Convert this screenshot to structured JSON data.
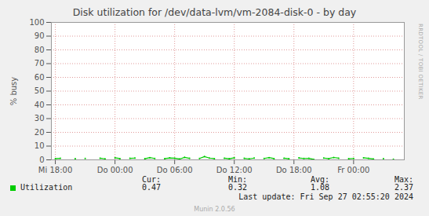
{
  "chart_data": {
    "type": "line",
    "title": "Disk utilization for /dev/data-lvm/vm-2084-disk-0 - by day",
    "ylabel": "% busy",
    "side_text": "RRDTOOL / TOBI OETIKER",
    "x": [
      0,
      0.5,
      1,
      1.5,
      2,
      2.5,
      3,
      3.5,
      4,
      4.5,
      5,
      5.5,
      6,
      6.5,
      7,
      7.5,
      8,
      8.5,
      9,
      9.5,
      10,
      10.5,
      11,
      11.5,
      12,
      12.5,
      13,
      13.5,
      14,
      14.5,
      15,
      15.5,
      16,
      16.5,
      17,
      17.5,
      18,
      18.5,
      19,
      19.5,
      20,
      20.5,
      21,
      21.5,
      22,
      22.5,
      23,
      23.5,
      24,
      24.5,
      25,
      25.5,
      26,
      26.5,
      27,
      27.5,
      28,
      28.5,
      29,
      29.5,
      30,
      30.5,
      31,
      31.5,
      32,
      32.5,
      33,
      33.5,
      34
    ],
    "series": [
      {
        "name": "Utilization",
        "color": "#00cc00",
        "values": [
          0.9,
          1.1,
          null,
          null,
          0.8,
          null,
          1.0,
          null,
          null,
          1.2,
          0.7,
          null,
          1.5,
          0.9,
          null,
          1.1,
          1.3,
          null,
          0.8,
          1.6,
          1.0,
          null,
          0.9,
          1.4,
          1.2,
          0.6,
          1.8,
          1.1,
          null,
          1.0,
          2.37,
          1.3,
          0.9,
          null,
          1.2,
          0.8,
          1.5,
          null,
          1.1,
          0.7,
          1.3,
          null,
          1.0,
          1.6,
          0.9,
          null,
          1.2,
          0.8,
          null,
          1.4,
          1.0,
          1.1,
          0.32,
          null,
          1.3,
          0.9,
          1.7,
          1.2,
          null,
          0.8,
          1.0,
          null,
          1.5,
          1.1,
          0.6,
          null,
          0.9,
          null,
          0.47
        ]
      }
    ],
    "xlim": [
      -0.4,
      35.1
    ],
    "xticks": [
      {
        "value": 0,
        "label": "Mi 18:00"
      },
      {
        "value": 6,
        "label": "Do 00:00"
      },
      {
        "value": 12,
        "label": "Do 06:00"
      },
      {
        "value": 18,
        "label": "Do 12:00"
      },
      {
        "value": 24,
        "label": "Do 18:00"
      },
      {
        "value": 30,
        "label": "Fr 00:00"
      }
    ],
    "ylim": [
      0,
      100
    ],
    "yticks": [
      0,
      10,
      20,
      30,
      40,
      50,
      60,
      70,
      80,
      90,
      100
    ],
    "grid": true,
    "stats": {
      "headers": [
        "Cur:",
        "Min:",
        "Avg:",
        "Max:"
      ],
      "values": [
        0.47,
        0.32,
        1.08,
        2.37
      ]
    },
    "last_update": "Last update: Fri Sep 27 02:55:20 2024",
    "footer": "Munin 2.0.56"
  }
}
